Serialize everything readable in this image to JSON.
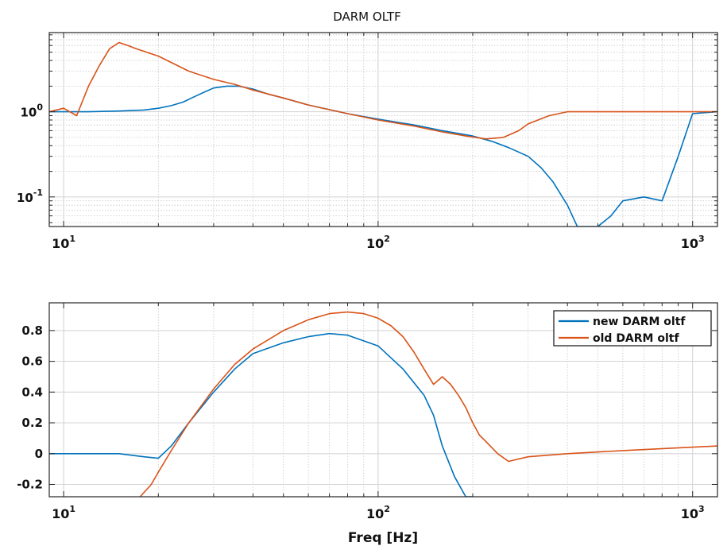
{
  "chart_data": [
    {
      "type": "line",
      "title": "DARM OLTF",
      "xscale": "log",
      "yscale": "log",
      "xlim": [
        9,
        1200
      ],
      "ylim": [
        0.045,
        8.5
      ],
      "grid": true,
      "x_ticks": [
        {
          "value": 10,
          "base": "10",
          "exp": "1"
        },
        {
          "value": 100,
          "base": "10",
          "exp": "2"
        },
        {
          "value": 1000,
          "base": "10",
          "exp": "3"
        }
      ],
      "y_ticks": [
        {
          "value": 0.1,
          "base": "10",
          "exp": "-1"
        },
        {
          "value": 1,
          "base": "10",
          "exp": "0"
        }
      ],
      "series": [
        {
          "name": "new DARM oltf",
          "color": "#0072BD",
          "x": [
            9,
            12,
            15,
            18,
            20,
            22,
            24,
            26,
            28,
            30,
            33,
            36,
            40,
            45,
            50,
            60,
            80,
            100,
            130,
            160,
            200,
            230,
            260,
            300,
            330,
            360,
            400,
            430,
            460,
            500,
            550,
            600,
            700,
            800,
            900,
            1000,
            1200
          ],
          "y": [
            1.0,
            1.0,
            1.02,
            1.05,
            1.1,
            1.18,
            1.3,
            1.5,
            1.7,
            1.9,
            2.0,
            2.0,
            1.85,
            1.6,
            1.45,
            1.2,
            0.95,
            0.82,
            0.7,
            0.6,
            0.52,
            0.45,
            0.38,
            0.3,
            0.22,
            0.15,
            0.08,
            0.045,
            0.045,
            0.045,
            0.06,
            0.09,
            0.1,
            0.09,
            0.3,
            0.95,
            1.0
          ]
        },
        {
          "name": "old DARM oltf",
          "color": "#D95319",
          "x": [
            9,
            10,
            11,
            12,
            13,
            14,
            15,
            16,
            17,
            20,
            25,
            30,
            35,
            40,
            50,
            60,
            80,
            100,
            130,
            160,
            190,
            220,
            250,
            280,
            300,
            350,
            400,
            600,
            1200
          ],
          "y": [
            1.0,
            1.1,
            0.9,
            2.0,
            3.5,
            5.5,
            6.5,
            6.0,
            5.5,
            4.5,
            3.0,
            2.4,
            2.1,
            1.8,
            1.45,
            1.2,
            0.95,
            0.8,
            0.68,
            0.58,
            0.52,
            0.48,
            0.5,
            0.6,
            0.72,
            0.9,
            1.0,
            1.0,
            1.0
          ]
        }
      ]
    },
    {
      "type": "line",
      "xlabel": "Freq [Hz]",
      "xscale": "log",
      "yscale": "linear",
      "xlim": [
        9,
        1200
      ],
      "ylim": [
        -0.28,
        0.98
      ],
      "grid": true,
      "x_ticks": [
        {
          "value": 10,
          "base": "10",
          "exp": "1"
        },
        {
          "value": 100,
          "base": "10",
          "exp": "2"
        },
        {
          "value": 1000,
          "base": "10",
          "exp": "3"
        }
      ],
      "y_ticks": [
        {
          "value": -0.2,
          "label": "-0.2"
        },
        {
          "value": 0,
          "label": "0"
        },
        {
          "value": 0.2,
          "label": "0.2"
        },
        {
          "value": 0.4,
          "label": "0.4"
        },
        {
          "value": 0.6,
          "label": "0.6"
        },
        {
          "value": 0.8,
          "label": "0.8"
        }
      ],
      "legend": {
        "location": "top-right"
      },
      "series": [
        {
          "name": "new DARM oltf",
          "color": "#0072BD",
          "x": [
            9,
            12,
            15,
            18,
            20,
            22,
            25,
            30,
            35,
            40,
            50,
            60,
            70,
            80,
            100,
            120,
            140,
            150,
            160,
            175,
            190,
            200
          ],
          "y": [
            0.0,
            0.0,
            0.0,
            -0.02,
            -0.03,
            0.05,
            0.2,
            0.4,
            0.55,
            0.65,
            0.72,
            0.76,
            0.78,
            0.77,
            0.7,
            0.55,
            0.38,
            0.25,
            0.05,
            -0.15,
            -0.28,
            -0.28
          ]
        },
        {
          "name": "old DARM oltf",
          "color": "#D95319",
          "x": [
            17.5,
            19,
            20,
            22,
            25,
            30,
            35,
            40,
            50,
            60,
            70,
            80,
            90,
            100,
            110,
            120,
            130,
            140,
            150,
            160,
            170,
            180,
            190,
            200,
            210,
            220,
            240,
            260,
            300,
            400,
            600,
            1200
          ],
          "y": [
            -0.28,
            -0.2,
            -0.12,
            0.02,
            0.2,
            0.42,
            0.58,
            0.68,
            0.8,
            0.87,
            0.91,
            0.92,
            0.91,
            0.88,
            0.83,
            0.76,
            0.66,
            0.55,
            0.45,
            0.5,
            0.45,
            0.38,
            0.3,
            0.2,
            0.12,
            0.08,
            0.0,
            -0.05,
            -0.02,
            0.0,
            0.02,
            0.05
          ]
        }
      ]
    }
  ]
}
